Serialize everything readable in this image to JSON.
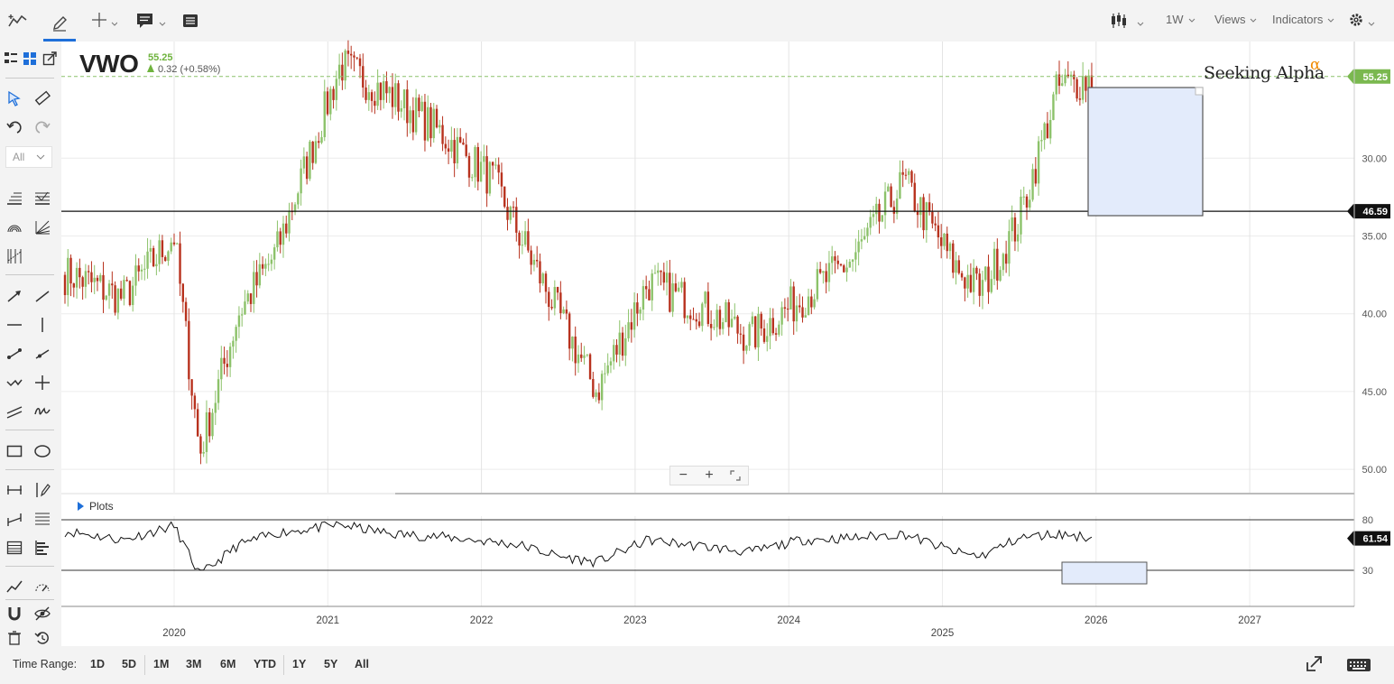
{
  "toolbar": {
    "interval": "1W",
    "views": "Views",
    "indicators": "Indicators"
  },
  "left_toolbar": {
    "filter": "All"
  },
  "symbol": {
    "ticker": "VWO",
    "price": "55.25",
    "change": "0.32 (+0.58%)"
  },
  "brand": {
    "name": "Seeking Alpha",
    "mark": "α"
  },
  "price_axis": {
    "ticks": [
      "50.00",
      "45.00",
      "40.00",
      "35.00",
      "30.00"
    ],
    "last_price_label": "55.25",
    "hline_label": "46.59"
  },
  "plots": {
    "toggle_label": "Plots",
    "ticks": [
      "80",
      "30"
    ],
    "value_label": "61.54"
  },
  "time_axis": {
    "years": [
      "2020",
      "2021",
      "2022",
      "2023",
      "2024",
      "2025",
      "2026",
      "2027"
    ]
  },
  "time_range": {
    "label": "Time Range:",
    "buttons": [
      "1D",
      "5D",
      "1M",
      "3M",
      "6M",
      "YTD",
      "1Y",
      "5Y",
      "All"
    ]
  },
  "chart_data": {
    "type": "candlestick",
    "symbol": "VWO",
    "interval": "1W",
    "x": [
      "2019-05",
      "2019-09",
      "2020-01",
      "2020-03",
      "2020-06",
      "2020-09",
      "2021-02",
      "2021-06",
      "2021-10",
      "2022-02",
      "2022-04",
      "2022-07",
      "2022-10",
      "2023-02",
      "2023-06",
      "2023-10",
      "2024-02",
      "2024-06",
      "2024-10",
      "2025-02",
      "2025-04",
      "2025-07",
      "2025-10",
      "2026-01"
    ],
    "close": [
      42.5,
      41.0,
      45.0,
      31.0,
      40.0,
      44.0,
      56.0,
      54.0,
      51.5,
      48.5,
      45.0,
      40.0,
      35.0,
      42.0,
      40.5,
      38.5,
      41.0,
      43.5,
      48.5,
      43.0,
      41.5,
      46.0,
      54.5,
      55.25
    ],
    "ylim": [
      28.5,
      57.5
    ],
    "yticks": [
      30,
      35,
      40,
      45,
      50
    ],
    "last_price": 55.25,
    "horizontal_line": 46.59,
    "indicator": {
      "levels": [
        80,
        30
      ],
      "last_value": 61.54,
      "values": [
        68,
        60,
        74,
        25,
        55,
        67,
        75,
        66,
        63,
        58,
        55,
        44,
        38,
        60,
        54,
        48,
        60,
        62,
        66,
        48,
        44,
        62,
        66,
        62
      ]
    }
  }
}
